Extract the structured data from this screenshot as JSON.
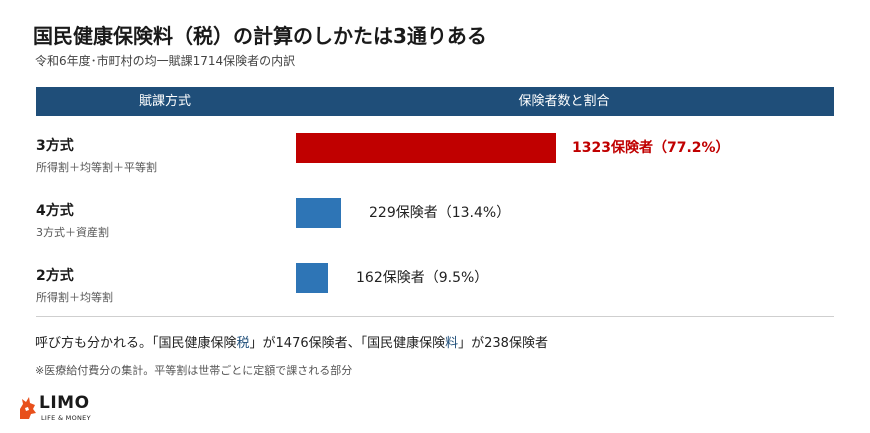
{
  "title": "国民健康保険料（税）の計算のしかたは3通りある",
  "subtitle": "令和6年度･市町村の均一賦課1714保険者の内訳",
  "header": {
    "col1": "賦課方式",
    "col2": "保険者数と割合"
  },
  "colors": {
    "header_bg": "#1f4e79",
    "highlight_bar": "#c00000",
    "bar": "#2e75b6",
    "highlight_text": "#c00000"
  },
  "chart_data": {
    "type": "bar",
    "orientation": "horizontal",
    "categories": [
      "3方式",
      "4方式",
      "2方式"
    ],
    "category_subtitles": [
      "所得割＋均等割＋平等割",
      "3方式＋資産割",
      "所得割＋均等割"
    ],
    "values": [
      1323,
      229,
      162
    ],
    "percentages": [
      77.2,
      13.4,
      9.5
    ],
    "data_labels": [
      "1323保険者（77.2%）",
      "229保険者（13.4%）",
      "162保険者（9.5%）"
    ],
    "highlighted_index": 0
  },
  "note": {
    "part1": "呼び方も分かれる。「国民健康保険",
    "hl1": "税",
    "part2": "」が1476保険者、「国民健康保険",
    "hl2": "料",
    "part3": "」が238保険者"
  },
  "footnote": "※医療給付費分の集計。平等割は世帯ごとに定額で課される部分",
  "logo": {
    "name": "LIMO",
    "tagline": "LIFE & MONEY"
  }
}
